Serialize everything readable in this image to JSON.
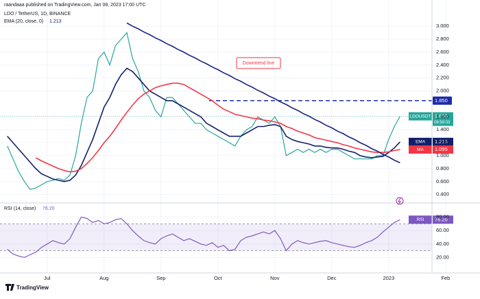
{
  "chart_data": [
    {
      "type": "line",
      "title": "LDO / TetherUS, 1D, BINANCE",
      "subtitle": "raandaaa published on TradingView.com, Jan 08, 2023 17:00 UTC",
      "indicator_label": "EMA (20, close, 0)",
      "countdown": "06:59:03",
      "categories": [
        null,
        null,
        null,
        null,
        null,
        null,
        null,
        "Jul",
        null,
        null,
        null,
        null,
        null,
        null,
        null,
        null,
        null,
        "Aug",
        null,
        null,
        null,
        null,
        null,
        null,
        null,
        null,
        null,
        "Sep",
        null,
        null,
        null,
        null,
        null,
        null,
        null,
        null,
        null,
        "Oct",
        null,
        null,
        null,
        null,
        null,
        null,
        null,
        null,
        null,
        "Nov",
        null,
        null,
        null,
        null,
        null,
        null,
        null,
        null,
        null,
        "Dec",
        null,
        null,
        null,
        null,
        null,
        null,
        null,
        null,
        null,
        "2023",
        null,
        null,
        null,
        null,
        null,
        null,
        null,
        null,
        null,
        "Feb"
      ],
      "series": [
        {
          "name": "LDOUSDT",
          "color": "#26a69a",
          "values": [
            1.15,
            0.95,
            0.75,
            0.6,
            0.48,
            0.5,
            0.55,
            0.6,
            0.62,
            0.65,
            0.62,
            0.7,
            1.0,
            1.5,
            1.9,
            2.0,
            2.5,
            2.6,
            2.4,
            2.7,
            2.8,
            2.9,
            2.5,
            2.3,
            2.0,
            1.9,
            1.7,
            1.6,
            1.9,
            1.9,
            1.8,
            1.7,
            1.6,
            1.5,
            1.5,
            1.4,
            1.35,
            1.3,
            1.25,
            1.2,
            1.15,
            1.3,
            1.4,
            1.45,
            1.6,
            1.55,
            1.5,
            1.6,
            1.45,
            1.0,
            1.05,
            1.1,
            1.05,
            1.1,
            1.05,
            1.1,
            1.05,
            1.1,
            1.1,
            1.05,
            1.0,
            0.95,
            0.95,
            0.95,
            0.95,
            1.0,
            1.0,
            1.25,
            1.45,
            1.608,
            null,
            null,
            null,
            null,
            null,
            null,
            null,
            null
          ]
        },
        {
          "name": "EMA",
          "color": "#131f6b",
          "values": [
            1.3,
            1.2,
            1.1,
            1.0,
            0.9,
            0.8,
            0.72,
            0.68,
            0.64,
            0.62,
            0.6,
            0.62,
            0.7,
            0.85,
            1.05,
            1.25,
            1.5,
            1.75,
            1.9,
            2.1,
            2.25,
            2.35,
            2.3,
            2.2,
            2.1,
            2.0,
            1.95,
            1.9,
            1.85,
            1.85,
            1.8,
            1.75,
            1.7,
            1.65,
            1.6,
            1.5,
            1.45,
            1.4,
            1.35,
            1.3,
            1.3,
            1.3,
            1.35,
            1.4,
            1.45,
            1.45,
            1.47,
            1.48,
            1.45,
            1.3,
            1.25,
            1.22,
            1.2,
            1.18,
            1.15,
            1.15,
            1.13,
            1.12,
            1.12,
            1.1,
            1.07,
            1.05,
            1.0,
            0.98,
            0.97,
            0.98,
            0.99,
            1.05,
            1.12,
            1.213,
            null,
            null,
            null,
            null,
            null,
            null,
            null,
            null
          ]
        },
        {
          "name": "MA",
          "color": "#f23645",
          "values": [
            null,
            null,
            null,
            null,
            null,
            0.97,
            0.92,
            0.88,
            0.84,
            0.8,
            0.77,
            0.75,
            0.76,
            0.8,
            0.88,
            0.97,
            1.08,
            1.2,
            1.3,
            1.42,
            1.55,
            1.67,
            1.78,
            1.88,
            1.95,
            2.0,
            2.05,
            2.08,
            2.1,
            2.12,
            2.12,
            2.1,
            2.05,
            2.0,
            1.95,
            1.9,
            1.85,
            1.78,
            1.72,
            1.68,
            1.64,
            1.62,
            1.6,
            1.58,
            1.57,
            1.55,
            1.54,
            1.52,
            1.5,
            1.45,
            1.42,
            1.38,
            1.35,
            1.32,
            1.28,
            1.26,
            1.24,
            1.22,
            1.2,
            1.17,
            1.15,
            1.12,
            1.1,
            1.08,
            1.06,
            1.05,
            1.05,
            1.06,
            1.08,
            1.095,
            null,
            null,
            null,
            null,
            null,
            null,
            null,
            null
          ]
        },
        {
          "name": "Downtrend line",
          "color": "#1a237e",
          "values": [
            null,
            null,
            null,
            null,
            null,
            null,
            null,
            null,
            null,
            null,
            null,
            null,
            null,
            null,
            null,
            null,
            null,
            null,
            null,
            null,
            null,
            3.05,
            3.0,
            2.96,
            2.91,
            2.87,
            2.82,
            2.78,
            2.73,
            2.69,
            2.64,
            2.6,
            2.55,
            2.51,
            2.46,
            2.42,
            2.37,
            2.33,
            2.28,
            2.24,
            2.19,
            2.15,
            2.1,
            2.06,
            2.01,
            1.97,
            1.92,
            1.88,
            1.83,
            1.79,
            1.74,
            1.7,
            1.65,
            1.61,
            1.56,
            1.52,
            1.47,
            1.43,
            1.38,
            1.34,
            1.29,
            1.25,
            1.2,
            1.16,
            1.11,
            1.07,
            1.02,
            0.98,
            0.93,
            0.89,
            null,
            null,
            null,
            null,
            null,
            null,
            null,
            null
          ]
        }
      ],
      "hline": {
        "value": 1.85,
        "label": "1.850",
        "color": "#1e2ba8"
      },
      "ylim": [
        0.28,
        3.32
      ],
      "yticks": [
        {
          "value": 0.4,
          "label": "0.400"
        },
        {
          "value": 0.6,
          "label": "0.600"
        },
        {
          "value": 0.8,
          "label": "0.800"
        },
        {
          "value": 1.0,
          "label": "1.000"
        },
        {
          "value": 1.2,
          "label": "1.200"
        },
        {
          "value": 1.4,
          "label": "1.400"
        },
        {
          "value": 1.6,
          "label": "1.600"
        },
        {
          "value": 2.0,
          "label": "2.000"
        },
        {
          "value": 2.2,
          "label": "2.200"
        },
        {
          "value": 2.4,
          "label": "2.400"
        },
        {
          "value": 2.6,
          "label": "2.600"
        },
        {
          "value": 2.8,
          "label": "2.800"
        },
        {
          "value": 3.0,
          "label": "3.000"
        }
      ],
      "grid": true
    },
    {
      "type": "line",
      "title": "RSI (14, close)",
      "series": [
        {
          "name": "RSI",
          "color": "#7e57c2",
          "values": [
            32,
            25,
            22,
            20,
            24,
            28,
            35,
            40,
            45,
            42,
            40,
            48,
            65,
            80,
            78,
            72,
            75,
            70,
            72,
            76,
            78,
            70,
            60,
            52,
            45,
            42,
            40,
            48,
            52,
            55,
            50,
            45,
            48,
            44,
            40,
            38,
            42,
            35,
            38,
            30,
            32,
            45,
            50,
            52,
            55,
            58,
            55,
            60,
            48,
            30,
            40,
            45,
            42,
            40,
            42,
            44,
            45,
            42,
            40,
            38,
            36,
            35,
            38,
            42,
            45,
            50,
            58,
            65,
            72,
            76.2
          ]
        }
      ],
      "value_labels": [
        "76.20"
      ],
      "band": [
        30,
        70
      ],
      "ylim": [
        0,
        100
      ],
      "yticks": [
        {
          "value": 20,
          "label": "20.00"
        },
        {
          "value": 40,
          "label": "40.00"
        },
        {
          "value": 60,
          "label": "60.00"
        },
        {
          "value": 80,
          "label": "80.00"
        }
      ],
      "grid": true
    }
  ],
  "footer": "TradingView"
}
